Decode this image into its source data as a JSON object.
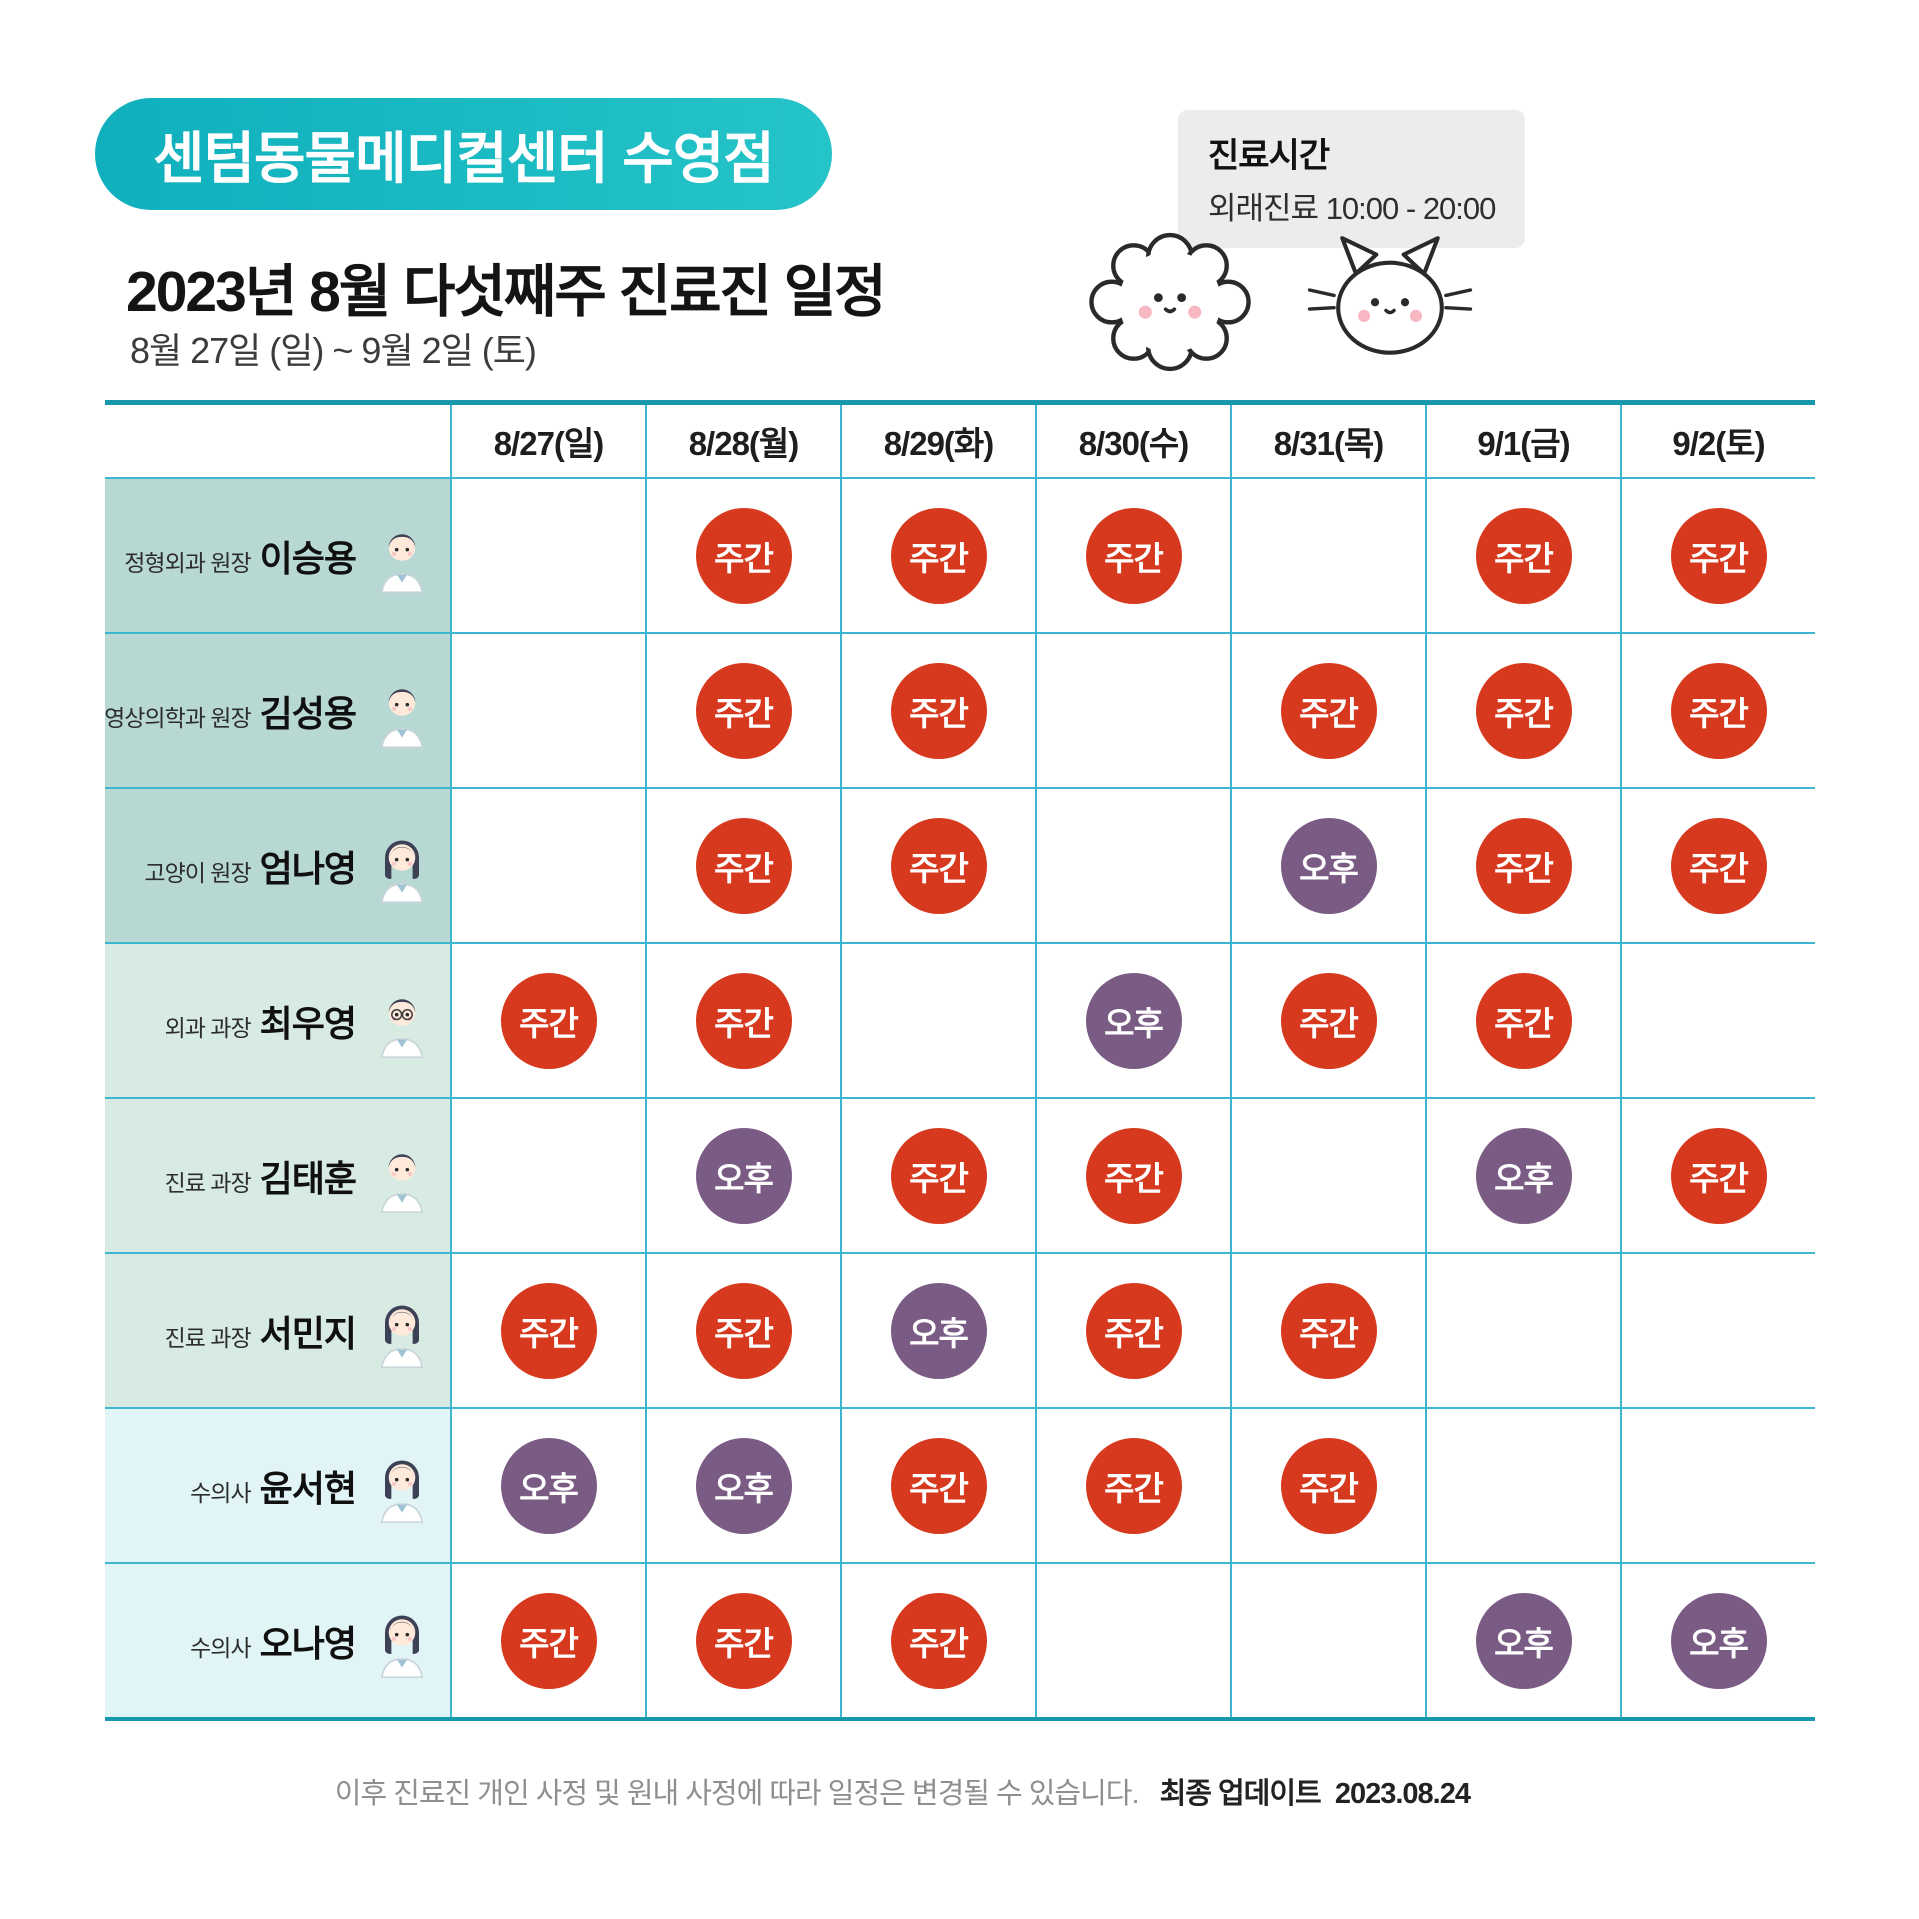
{
  "header": {
    "clinic_badge": "센텀동물메디컬센터 수영점",
    "hours": {
      "title": "진료시간",
      "value": "외래진료 10:00 - 20:00"
    },
    "title": "2023년 8월 다섯째주 진료진 일정",
    "date_range": "8월 27일 (일) ~ 9월 2일 (토)"
  },
  "schedule": {
    "columns": [
      "8/27(일)",
      "8/28(월)",
      "8/29(화)",
      "8/30(수)",
      "8/31(목)",
      "9/1(금)",
      "9/2(토)"
    ],
    "shift_labels": {
      "day": "주간",
      "afternoon": "오후"
    },
    "rows": [
      {
        "role": "정형외과 원장",
        "name": "이승용",
        "group": "director",
        "avatar": "male-doctor",
        "cells": [
          "",
          "주간",
          "주간",
          "주간",
          "",
          "주간",
          "주간"
        ]
      },
      {
        "role": "영상의학과 원장",
        "name": "김성용",
        "group": "director",
        "avatar": "male-doctor",
        "cells": [
          "",
          "주간",
          "주간",
          "",
          "주간",
          "주간",
          "주간"
        ]
      },
      {
        "role": "고양이 원장",
        "name": "엄나영",
        "group": "director",
        "avatar": "female-doctor",
        "cells": [
          "",
          "주간",
          "주간",
          "",
          "오후",
          "주간",
          "주간"
        ]
      },
      {
        "role": "외과 과장",
        "name": "최우영",
        "group": "manager",
        "avatar": "male-doctor-glasses",
        "cells": [
          "주간",
          "주간",
          "",
          "오후",
          "주간",
          "주간",
          ""
        ]
      },
      {
        "role": "진료 과장",
        "name": "김태훈",
        "group": "manager",
        "avatar": "male-doctor",
        "cells": [
          "",
          "오후",
          "주간",
          "주간",
          "",
          "오후",
          "주간"
        ]
      },
      {
        "role": "진료 과장",
        "name": "서민지",
        "group": "manager",
        "avatar": "female-doctor",
        "cells": [
          "주간",
          "주간",
          "오후",
          "주간",
          "주간",
          "",
          ""
        ]
      },
      {
        "role": "수의사",
        "name": "윤서현",
        "group": "vet",
        "avatar": "female-doctor",
        "cells": [
          "오후",
          "오후",
          "주간",
          "주간",
          "주간",
          "",
          ""
        ]
      },
      {
        "role": "수의사",
        "name": "오나영",
        "group": "vet",
        "avatar": "female-doctor",
        "cells": [
          "주간",
          "주간",
          "주간",
          "",
          "",
          "오후",
          "오후"
        ]
      }
    ]
  },
  "colors": {
    "shift_day": "#d6391e",
    "shift_afternoon": "#7a5b84",
    "grid_line": "#3fb6d0",
    "grid_edge": "#1898ad",
    "badge_bg": "#15b1c0",
    "row_group_director": "#b7d8d3",
    "row_group_manager": "#d8ebe3",
    "row_group_vet": "#e1f4f6"
  },
  "footer": {
    "note": "이후 진료진 개인 사정 및 원내 사정에 따라 일정은 변경될 수 있습니다.",
    "updated_label": "최종 업데이트",
    "updated_date": "2023.08.24"
  }
}
